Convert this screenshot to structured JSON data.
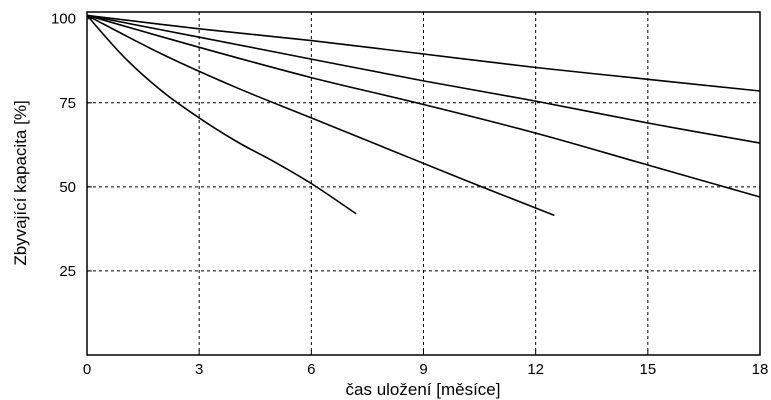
{
  "chart_data": {
    "type": "line",
    "title": "",
    "xlabel": "čas uložení [měsíce]",
    "ylabel": "Zbyvající kapacita [%]",
    "xlim": [
      0,
      18
    ],
    "ylim": [
      0,
      102
    ],
    "xticks": [
      0,
      3,
      6,
      9,
      12,
      15,
      18
    ],
    "yticks": [
      25,
      50,
      75,
      100
    ],
    "grid": true,
    "legend": "none",
    "series": [
      {
        "x": [
          0,
          1,
          2,
          3,
          4,
          5,
          6,
          7.2
        ],
        "y": [
          101,
          88.5,
          78.5,
          70.5,
          63.5,
          57.5,
          51,
          42
        ]
      },
      {
        "x": [
          0,
          2,
          4,
          6,
          8,
          10,
          12.5
        ],
        "y": [
          101,
          89.5,
          79.5,
          70.5,
          61.5,
          52.5,
          41.5
        ]
      },
      {
        "x": [
          0,
          3,
          6,
          9,
          12,
          15,
          18
        ],
        "y": [
          101,
          91.5,
          82.5,
          74.5,
          66,
          56.5,
          47
        ]
      },
      {
        "x": [
          0,
          3,
          6,
          9,
          12,
          15,
          18
        ],
        "y": [
          101,
          94.5,
          88,
          81.5,
          75.5,
          69,
          63
        ]
      },
      {
        "x": [
          0,
          3,
          6,
          9,
          12,
          15,
          18
        ],
        "y": [
          101,
          97,
          93.5,
          89.5,
          85.5,
          82,
          78.5
        ]
      }
    ]
  }
}
